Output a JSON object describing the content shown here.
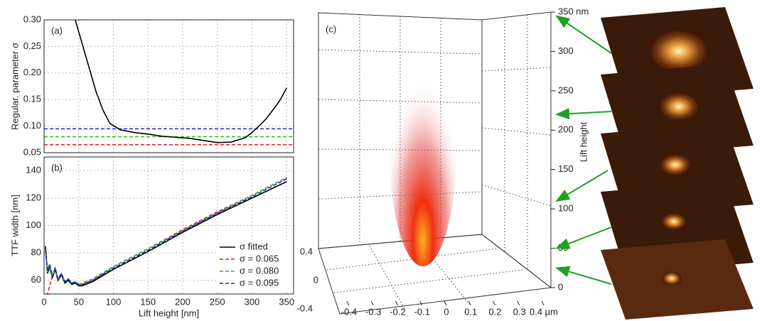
{
  "chart_data": [
    {
      "type": "line",
      "panel": "(a)",
      "ylabel": "Regular. parameter σ",
      "xlim": [
        0,
        360
      ],
      "ylim": [
        0.05,
        0.3
      ],
      "xticks": [
        0,
        50,
        100,
        150,
        200,
        250,
        300,
        350
      ],
      "yticks": [
        0.05,
        {
          "value": 0.1,
          "label": "0.10"
        },
        0.15,
        {
          "value": 0.2,
          "label": "0.20"
        },
        0.25,
        {
          "value": 0.3,
          "label": "0.30"
        }
      ],
      "grid": true,
      "x": [
        45,
        55,
        65,
        75,
        85,
        95,
        110,
        130,
        150,
        170,
        190,
        210,
        230,
        250,
        270,
        290,
        300,
        310,
        320,
        330,
        340,
        350
      ],
      "series": [
        {
          "color": "#000000",
          "values": [
            0.3,
            0.255,
            0.21,
            0.165,
            0.13,
            0.105,
            0.093,
            0.088,
            0.085,
            0.081,
            0.079,
            0.077,
            0.073,
            0.069,
            0.07,
            0.078,
            0.088,
            0.1,
            0.113,
            0.13,
            0.148,
            0.172
          ]
        }
      ],
      "hlines": [
        {
          "value": 0.065,
          "color": "#e02020"
        },
        {
          "value": 0.08,
          "color": "#20c020"
        },
        {
          "value": 0.095,
          "color": "#2020d0"
        }
      ]
    },
    {
      "type": "line",
      "panel": "(b)",
      "xlabel": "Lift height [nm]",
      "ylabel": "TTF width [nm]",
      "xlim": [
        0,
        360
      ],
      "ylim": [
        50,
        150
      ],
      "xticks": [
        0,
        50,
        100,
        150,
        200,
        250,
        300,
        350
      ],
      "yticks": [
        60,
        80,
        100,
        120,
        140
      ],
      "grid": true,
      "legend": "lower right",
      "x": [
        2,
        5,
        8,
        12,
        16,
        20,
        25,
        30,
        35,
        40,
        45,
        50,
        55,
        60,
        70,
        80,
        100,
        150,
        200,
        250,
        300,
        350
      ],
      "series": [
        {
          "name": "σ fitted",
          "color": "#000000",
          "dash": false,
          "values": [
            85,
            65,
            70,
            62,
            68,
            60,
            64,
            58,
            60,
            57,
            58,
            56,
            56,
            57,
            59,
            62,
            68,
            81,
            95,
            108,
            120,
            132
          ]
        },
        {
          "name": "σ = 0.065",
          "color": "#e02020",
          "dash": true,
          "values": [
            50,
            50,
            56,
            63,
            69,
            61,
            65,
            59,
            61,
            58,
            59,
            57,
            57,
            58,
            60,
            63,
            70,
            83,
            97,
            110,
            122,
            135
          ]
        },
        {
          "name": "σ = 0.080",
          "color": "#20c020",
          "dash": true,
          "values": [
            80,
            66,
            71,
            63,
            69,
            61,
            65,
            59,
            61,
            58,
            59,
            57,
            58,
            59,
            61,
            64,
            70,
            83,
            96,
            109,
            122,
            135
          ]
        },
        {
          "name": "σ = 0.095",
          "color": "#2020d0",
          "dash": true,
          "values": [
            82,
            67,
            72,
            63,
            69,
            61,
            65,
            59,
            61,
            58,
            59,
            57,
            57,
            58,
            60,
            63,
            69,
            82,
            96,
            109,
            121,
            134
          ]
        }
      ]
    },
    {
      "type": "volume",
      "panel": "(c)",
      "zlabel": "Lift height",
      "zlim": [
        0,
        350
      ],
      "zticks": [
        0,
        50,
        100,
        150,
        200,
        250,
        300,
        {
          "value": 350,
          "label": "350 nm"
        }
      ],
      "xlim": [
        -0.4,
        0.4
      ],
      "xticks": [
        -0.4,
        -0.3,
        -0.2,
        -0.1,
        0,
        0.1,
        0.2,
        0.3,
        {
          "value": 0.4,
          "label": "0.4 µm"
        }
      ],
      "ylim": [
        -0.4,
        0.4
      ],
      "yticks": [
        -0.4,
        0,
        0.4
      ],
      "slice_heights": [
        345,
        220,
        110,
        50,
        25
      ],
      "arrow_color": "#20a020"
    }
  ]
}
